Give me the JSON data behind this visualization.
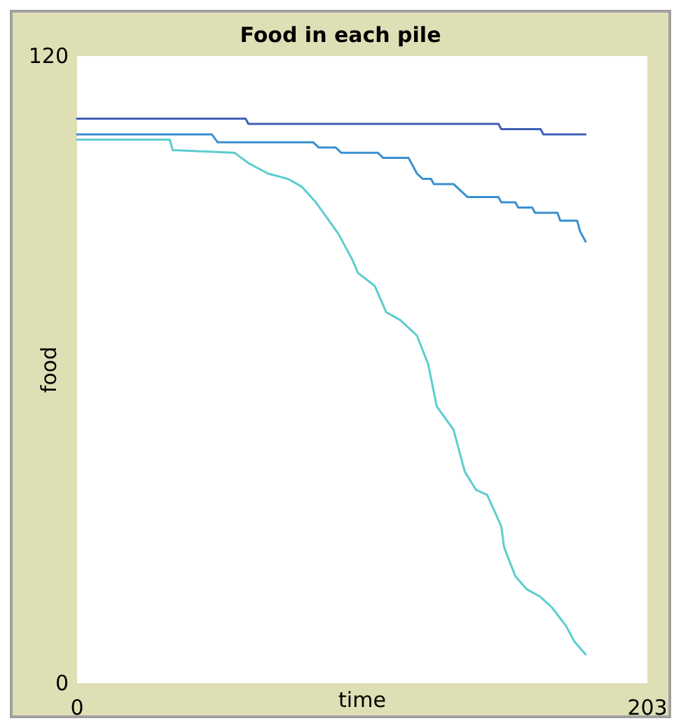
{
  "chart_data": {
    "type": "line",
    "title": "Food in each pile",
    "xlabel": "time",
    "ylabel": "food",
    "xlim": [
      0,
      203
    ],
    "ylim": [
      0,
      120
    ],
    "xticks": [
      0,
      203
    ],
    "yticks": [
      0,
      120
    ],
    "grid": false,
    "marker": "none",
    "line_style": "solid",
    "series": [
      {
        "color": "#3f5fb8",
        "x": [
          0,
          60,
          61,
          150,
          151,
          165,
          166,
          181
        ],
        "values": [
          108,
          108,
          107,
          107,
          106,
          106,
          105,
          105
        ]
      },
      {
        "color": "#3a8fd0",
        "x": [
          0,
          48,
          50,
          84,
          86,
          92,
          94,
          107,
          109,
          118,
          121,
          123,
          126,
          127,
          134,
          136,
          139,
          150,
          151,
          156,
          157,
          162,
          163,
          171,
          172,
          178,
          179,
          181
        ],
        "values": [
          105,
          105,
          103.5,
          103.5,
          102.5,
          102.5,
          101.5,
          101.5,
          100.5,
          100.5,
          97.5,
          96.5,
          96.5,
          95.5,
          95.5,
          94.5,
          93,
          93,
          92,
          92,
          91,
          91,
          90,
          90,
          88.5,
          88.5,
          86.5,
          84.5
        ]
      },
      {
        "color": "#5ccdd0",
        "x": [
          0,
          33,
          34,
          56,
          61,
          68,
          75,
          80,
          85,
          89,
          93,
          98,
          100,
          106,
          110,
          115,
          121,
          125,
          128,
          134,
          138,
          142,
          146,
          151,
          152,
          156,
          160,
          165,
          169,
          174,
          177,
          181
        ],
        "values": [
          104,
          104,
          102,
          101.5,
          99.5,
          97.5,
          96.5,
          95,
          92,
          89,
          86,
          81,
          78.5,
          76,
          71,
          69.5,
          66.5,
          61,
          53,
          48.5,
          40.5,
          37,
          36,
          30,
          26,
          20.5,
          18,
          16.5,
          14.5,
          11,
          8,
          5.5
        ]
      }
    ]
  }
}
